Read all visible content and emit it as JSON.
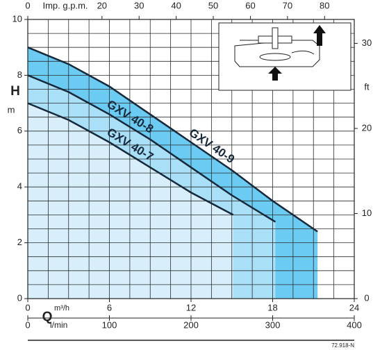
{
  "chart_data": {
    "type": "line",
    "y_label": "H",
    "y_unit": "m",
    "y2_label": "ft",
    "x_label": "Q",
    "x_unit": "m³/h",
    "x2_unit": "l/min",
    "x3_unit": "Imp. g.p.m.",
    "code": "72.918-N",
    "xlim": [
      0,
      24
    ],
    "xticks": [
      0,
      6,
      12,
      18,
      24
    ],
    "xminor": [
      1.5,
      3,
      4.5,
      6,
      7.5,
      9,
      10.5,
      12,
      13.5,
      15,
      16.5,
      18,
      19.5,
      21,
      22.5
    ],
    "ylim": [
      0,
      10
    ],
    "yticks": [
      0,
      2,
      4,
      6,
      8,
      10
    ],
    "yminor": [
      0.5,
      1,
      1.5,
      2,
      2.5,
      3,
      3.5,
      4,
      4.5,
      5,
      5.5,
      6,
      6.5,
      7,
      7.5,
      8,
      8.5,
      9,
      9.5
    ],
    "y2lim": [
      0,
      32.81
    ],
    "y2ticks": [
      0,
      10,
      20,
      30
    ],
    "x2lim": [
      0,
      400
    ],
    "x2ticks": [
      0,
      100,
      200,
      300,
      400
    ],
    "x3lim": [
      0,
      88
    ],
    "x3ticks": [
      0,
      20,
      30,
      40,
      50,
      60,
      70,
      80
    ],
    "grid": true,
    "series": [
      {
        "name": "GXV 40-9",
        "color": "#6ccbf2",
        "line_color": "#16283a",
        "x": [
          0,
          3,
          6,
          9,
          12,
          15,
          18,
          21.3
        ],
        "values": [
          9.0,
          8.4,
          7.6,
          6.6,
          5.6,
          4.6,
          3.5,
          2.4
        ]
      },
      {
        "name": "GXV 40-8",
        "color": "#a9dff7",
        "line_color": "#16283a",
        "x": [
          0,
          3,
          6,
          9,
          12,
          15,
          18.2
        ],
        "values": [
          8.0,
          7.4,
          6.6,
          5.7,
          4.7,
          3.7,
          2.75
        ]
      },
      {
        "name": "GXV 40-7",
        "color": "#d8effb",
        "line_color": "#16283a",
        "x": [
          0,
          3,
          6,
          9,
          12,
          15.1
        ],
        "values": [
          7.0,
          6.4,
          5.6,
          4.7,
          3.8,
          3.0
        ]
      }
    ]
  }
}
